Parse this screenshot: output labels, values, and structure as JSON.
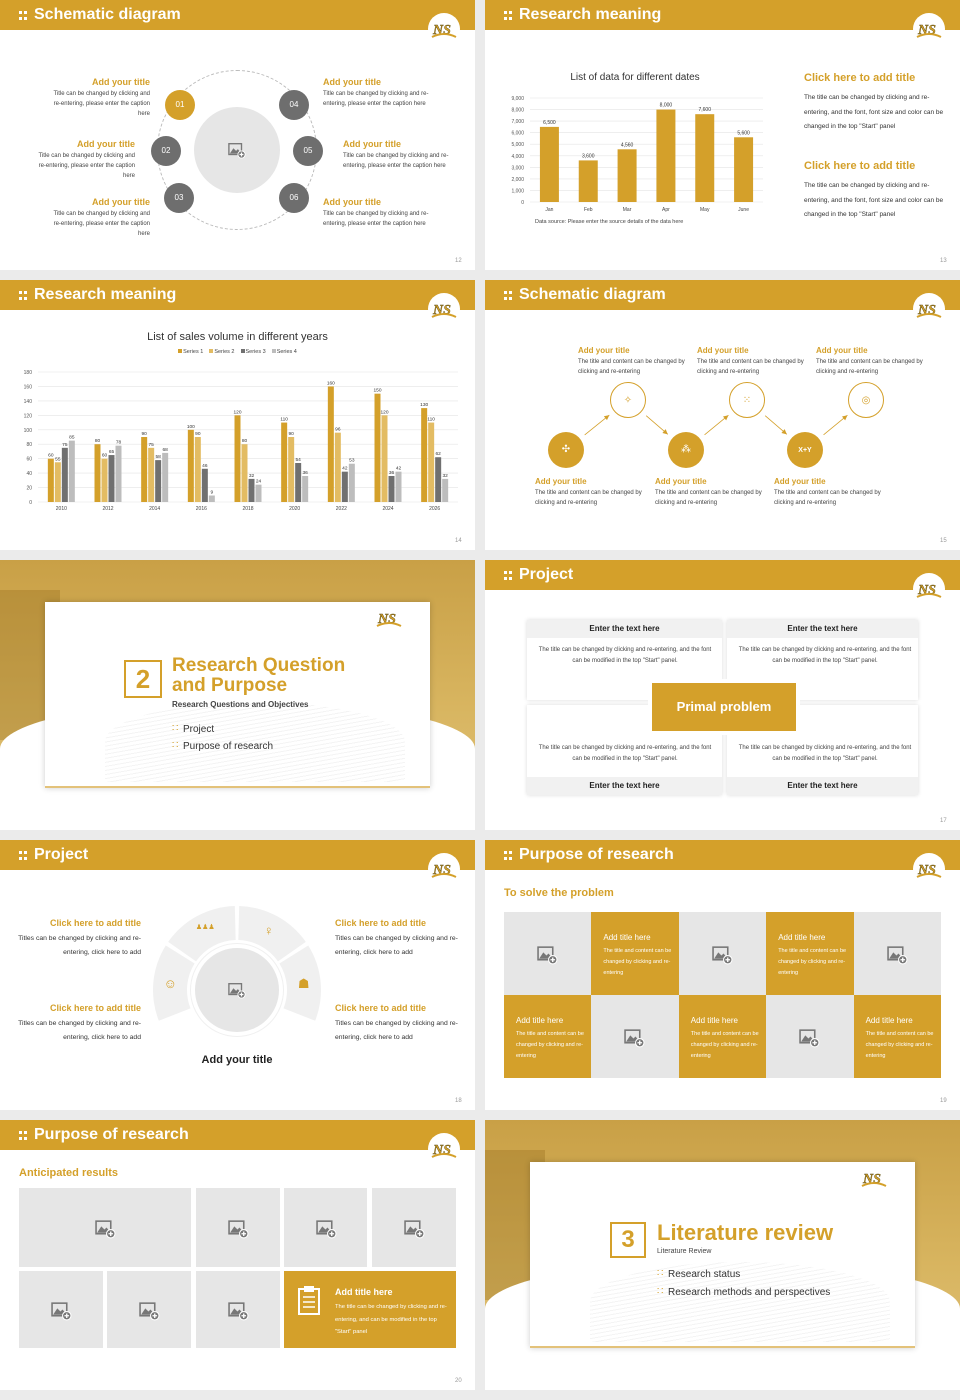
{
  "colors": {
    "accent": "#D4A02A",
    "accent_light": "#E3BC63",
    "dark_gray": "#6E6E6E",
    "light_gray": "#BDBDBD",
    "placeholder": "#E6E6E6"
  },
  "slides": [
    {
      "page": "12",
      "header": "Schematic diagram",
      "nodes": [
        {
          "num": "01",
          "title": "Add your title",
          "text": "Title can be changed by clicking and re-entering, please enter the caption here"
        },
        {
          "num": "02",
          "title": "Add your title",
          "text": "Title can be changed by clicking and re-entering, please enter the caption here"
        },
        {
          "num": "03",
          "title": "Add your title",
          "text": "Title can be changed by clicking and re-entering, please enter the caption here"
        },
        {
          "num": "04",
          "title": "Add your title",
          "text": "Title can be changed by clicking and re-entering, please enter the caption here"
        },
        {
          "num": "05",
          "title": "Add your title",
          "text": "Title can be changed by clicking and re-entering, please enter the caption here"
        },
        {
          "num": "06",
          "title": "Add your title",
          "text": "Title can be changed by clicking and re-entering, please enter the caption here"
        }
      ]
    },
    {
      "page": "13",
      "header": "Research meaning",
      "source": "Data source: Please enter the source details of the data here",
      "notes": [
        {
          "title": "Click here to add title",
          "text": "The title can be changed by clicking and re-entering, and the font, font size and color can be changed in the top \"Start\" panel"
        },
        {
          "title": "Click here to add title",
          "text": "The title can be changed by clicking and re-entering, and the font, font size and color can be changed in the top \"Start\" panel"
        }
      ]
    },
    {
      "page": "14",
      "header": "Research meaning"
    },
    {
      "page": "15",
      "header": "Schematic diagram",
      "steps": [
        {
          "title": "Add your title",
          "text": "The title and content can be changed by clicking and re-entering",
          "icon": "network-icon"
        },
        {
          "title": "Add your title",
          "text": "The title and content can be changed by clicking and re-entering",
          "icon": "sparkle-icon"
        },
        {
          "title": "Add your title",
          "text": "The title and content can be changed by clicking and re-entering",
          "icon": "molecule-icon"
        },
        {
          "title": "Add your title",
          "text": "The title and content can be changed by clicking and re-entering",
          "icon": "share-nodes-icon"
        },
        {
          "title": "Add your title",
          "text": "The title and content can be changed by clicking and re-entering",
          "icon": "xy-formula-icon",
          "icon_text": "X+Y"
        },
        {
          "title": "Add your title",
          "text": "The title and content can be changed by clicking and re-entering",
          "icon": "target-icon"
        }
      ]
    },
    {
      "page": "16",
      "number": "2",
      "title_line1": "Research Question",
      "title_line2": "and Purpose",
      "subtitle": "Research Questions and Objectives",
      "bullets": [
        "Project",
        "Purpose of research"
      ]
    },
    {
      "page": "17",
      "header": "Project",
      "center": "Primal problem",
      "cards": [
        {
          "head": "Enter the text here",
          "text": "The title can be changed by clicking and re-entering, and the font can be modified in the top \"Start\" panel."
        },
        {
          "head": "Enter the text here",
          "text": "The title can be changed by clicking and re-entering, and the font can be modified in the top \"Start\" panel."
        },
        {
          "head": "Enter the text here",
          "text": "The title can be changed by clicking and re-entering, and the font can be modified in the top \"Start\" panel."
        },
        {
          "head": "Enter the text here",
          "text": "The title can be changed by clicking and re-entering, and the font can be modified in the top \"Start\" panel."
        }
      ]
    },
    {
      "page": "18",
      "header": "Project",
      "center_title": "Add your title",
      "items": [
        {
          "title": "Click here to add title",
          "text": "Titles can be changed by clicking and re-entering, click here to add"
        },
        {
          "title": "Click here to add title",
          "text": "Titles can be changed by clicking and re-entering, click here to add"
        },
        {
          "title": "Click here to add title",
          "text": "Titles can be changed by clicking and re-entering, click here to add"
        },
        {
          "title": "Click here to add title",
          "text": "Titles can be changed by clicking and re-entering, click here to add"
        }
      ],
      "segment_icons": [
        "person-circle-icon",
        "team-icon",
        "businesswoman-icon",
        "reader-icon"
      ]
    },
    {
      "page": "19",
      "header": "Purpose of research",
      "subtitle": "To solve the problem",
      "tiles": [
        {
          "title": "Add title here",
          "text": "The title and content can be changed by clicking and re-entering"
        },
        {
          "title": "Add title here",
          "text": "The title and content can be changed by clicking and re-entering"
        },
        {
          "title": "Add title here",
          "text": "The title and content can be changed by clicking and re-entering"
        },
        {
          "title": "Add title here",
          "text": "The title and content can be changed by clicking and re-entering"
        },
        {
          "title": "Add title here",
          "text": "The title and content can be changed by clicking and re-entering"
        }
      ]
    },
    {
      "page": "20",
      "header": "Purpose of research",
      "subtitle": "Anticipated results",
      "box": {
        "title": "Add title here",
        "text": "The title can be changed by clicking and re-entering, and can be modified in the top \"Start\" panel",
        "icon": "clipboard-icon"
      }
    },
    {
      "page": "21",
      "number": "3",
      "title": "Literature review",
      "subtitle": "Literature Review",
      "bullets": [
        "Research status",
        "Research methods and perspectives"
      ]
    }
  ],
  "chart_data": [
    {
      "type": "bar",
      "title": "List of data for different dates",
      "categories": [
        "Jan",
        "Feb",
        "Mar",
        "Apr",
        "May",
        "June"
      ],
      "values": [
        6500,
        3600,
        4560,
        8000,
        7600,
        5600
      ],
      "value_labels": [
        "6,500",
        "3,600",
        "4,560",
        "8,000",
        "7,600",
        "5,600"
      ],
      "yticks": [
        "0",
        "1,000",
        "2,000",
        "3,000",
        "4,000",
        "5,000",
        "6,000",
        "7,000",
        "8,000",
        "9,000"
      ],
      "ylim": [
        0,
        9000
      ],
      "grid": true,
      "color": "#D4A02A"
    },
    {
      "type": "bar",
      "title": "List of sales volume in different years",
      "categories": [
        "2010",
        "2012",
        "2014",
        "2016",
        "2018",
        "2020",
        "2022",
        "2024",
        "2026"
      ],
      "series": [
        {
          "name": "Series 1",
          "color": "#D4A02A",
          "values": [
            60,
            80,
            90,
            100,
            120,
            110,
            160,
            150,
            130
          ]
        },
        {
          "name": "Series 2",
          "color": "#E3BC63",
          "values": [
            55,
            60,
            75,
            90,
            80,
            90,
            96,
            120,
            110
          ]
        },
        {
          "name": "Series 3",
          "color": "#707070",
          "values": [
            75,
            65,
            58,
            46,
            32,
            54,
            42,
            36,
            62
          ]
        },
        {
          "name": "Series 4",
          "color": "#BDBDBD",
          "values": [
            85,
            78,
            68,
            9,
            24,
            36,
            53,
            42,
            32
          ]
        }
      ],
      "yticks": [
        "0",
        "20",
        "40",
        "60",
        "80",
        "100",
        "120",
        "140",
        "160",
        "180"
      ],
      "ylim": [
        0,
        180
      ],
      "grid": true,
      "legend": "top"
    }
  ]
}
